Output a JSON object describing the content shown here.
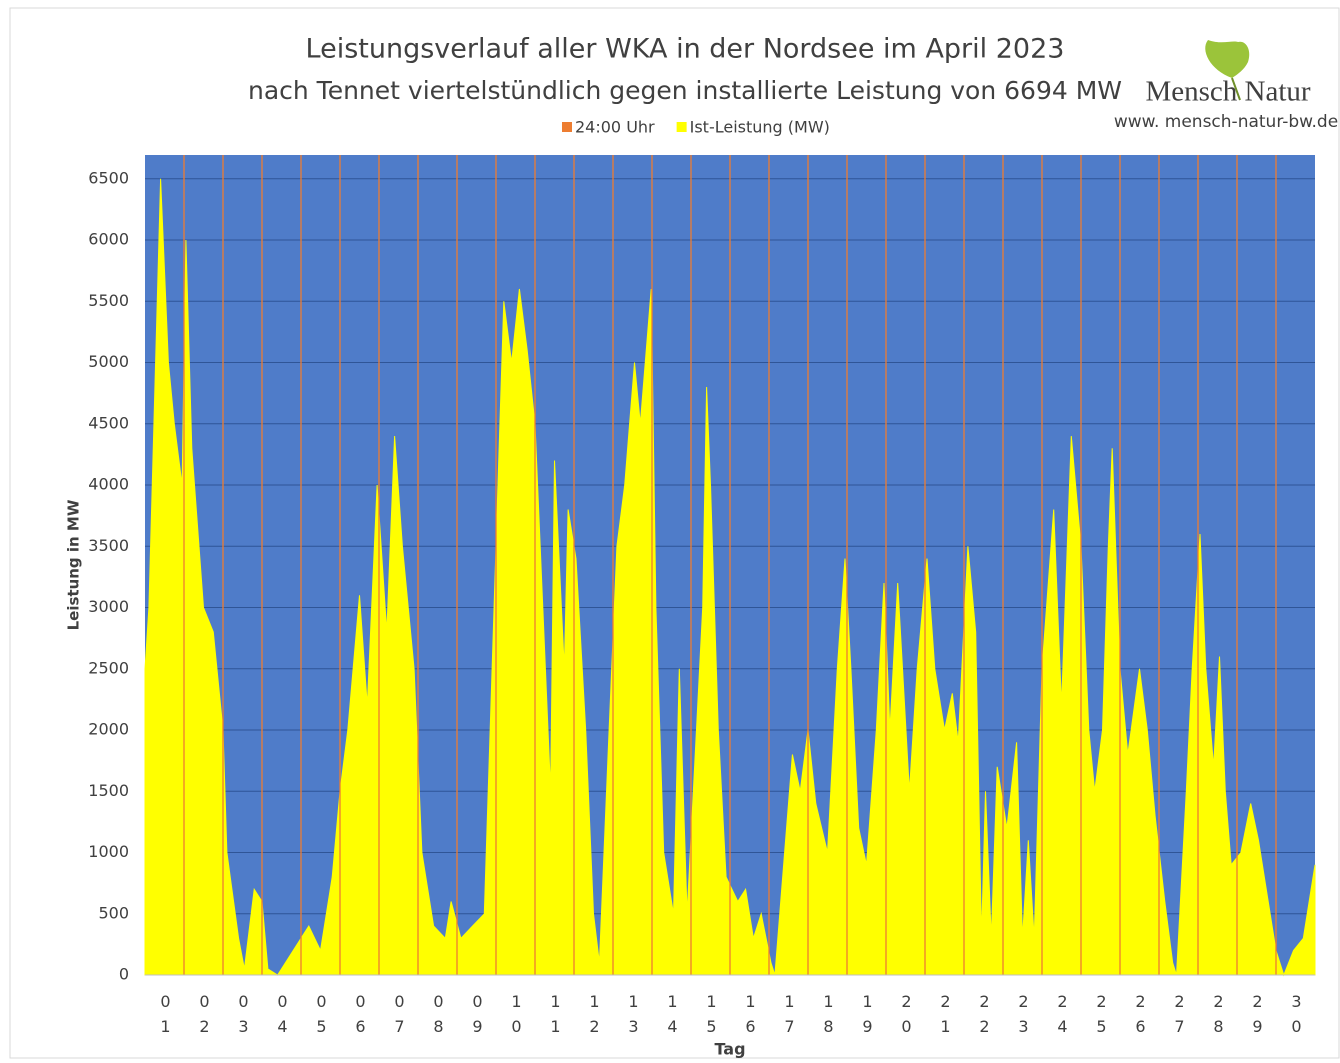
{
  "chart_data": {
    "type": "area",
    "title": "Leistungsverlauf aller WKA in der Nordsee im April 2023",
    "subtitle": "nach Tennet viertelstündlich gegen installierte Leistung von 6694 MW",
    "logo": {
      "name": "Mensch Natur",
      "url": "www. mensch-natur-bw.de"
    },
    "x_label": "Tag",
    "y_label": "Leistung in MW",
    "categories": [
      "01",
      "02",
      "03",
      "04",
      "05",
      "06",
      "07",
      "08",
      "09",
      "10",
      "11",
      "12",
      "13",
      "14",
      "15",
      "16",
      "17",
      "18",
      "19",
      "20",
      "21",
      "22",
      "23",
      "24",
      "25",
      "26",
      "27",
      "28",
      "29",
      "30"
    ],
    "xlim": [
      0,
      30
    ],
    "ylim": [
      0,
      6694
    ],
    "yticks": [
      0,
      500,
      1000,
      1500,
      2000,
      2500,
      3000,
      3500,
      4000,
      4500,
      5000,
      5500,
      6000,
      6500
    ],
    "grid": true,
    "background": "#4f7cc9",
    "series": [
      {
        "name": "24:00 Uhr",
        "color": "#ed7d31",
        "mark": "vline",
        "x": [
          1,
          2,
          3,
          4,
          5,
          6,
          7,
          8,
          9,
          10,
          11,
          12,
          13,
          14,
          15,
          16,
          17,
          18,
          19,
          20,
          21,
          22,
          23,
          24,
          25,
          26,
          27,
          28,
          29
        ],
        "values": [
          6694,
          6694,
          6694,
          6694,
          6694,
          6694,
          6694,
          6694,
          6694,
          6694,
          6694,
          6694,
          6694,
          6694,
          6694,
          6694,
          6694,
          6694,
          6694,
          6694,
          6694,
          6694,
          6694,
          6694,
          6694,
          6694,
          6694,
          6694,
          6694
        ]
      },
      {
        "name": "Ist-Leistung (MW)",
        "color": "#ffff00",
        "mark": "area",
        "x": [
          0,
          0.1,
          0.4,
          0.6,
          0.75,
          0.95,
          1.05,
          1.2,
          1.5,
          1.75,
          2.0,
          2.1,
          2.4,
          2.55,
          2.8,
          3.0,
          3.15,
          3.4,
          3.8,
          4.0,
          4.2,
          4.5,
          4.8,
          5.0,
          5.2,
          5.5,
          5.7,
          5.95,
          6.2,
          6.4,
          6.6,
          6.9,
          7.1,
          7.4,
          7.7,
          7.85,
          8.1,
          8.4,
          8.7,
          8.9,
          9.1,
          9.2,
          9.4,
          9.6,
          9.8,
          10.0,
          10.2,
          10.4,
          10.5,
          10.75,
          10.85,
          11.05,
          11.3,
          11.5,
          11.65,
          11.9,
          12.1,
          12.3,
          12.55,
          12.7,
          12.98,
          13.1,
          13.3,
          13.55,
          13.7,
          13.9,
          14.3,
          14.4,
          14.5,
          14.7,
          14.9,
          15.2,
          15.4,
          15.6,
          15.8,
          16.05,
          16.15,
          16.4,
          16.6,
          16.8,
          17.0,
          17.2,
          17.5,
          17.75,
          17.95,
          18.1,
          18.3,
          18.5,
          18.75,
          18.95,
          19.1,
          19.3,
          19.6,
          19.8,
          20.05,
          20.25,
          20.5,
          20.7,
          20.85,
          21.1,
          21.3,
          21.45,
          21.55,
          21.7,
          21.85,
          22.1,
          22.35,
          22.5,
          22.65,
          22.8,
          23.0,
          23.3,
          23.5,
          23.75,
          24.0,
          24.2,
          24.35,
          24.55,
          24.7,
          24.8,
          25.0,
          25.2,
          25.5,
          25.7,
          25.9,
          26.15,
          26.35,
          26.45,
          26.7,
          26.85,
          27.05,
          27.2,
          27.4,
          27.55,
          27.7,
          27.85,
          28.1,
          28.35,
          28.55,
          28.8,
          29.0,
          29.2,
          29.45,
          29.7,
          30.0
        ],
        "values": [
          2500,
          3000,
          6500,
          5000,
          4500,
          4000,
          6000,
          4300,
          3000,
          2800,
          2000,
          1000,
          300,
          50,
          700,
          600,
          50,
          0,
          200,
          300,
          400,
          200,
          800,
          1500,
          2000,
          3100,
          2200,
          4000,
          2800,
          4400,
          3500,
          2500,
          1000,
          400,
          300,
          600,
          300,
          400,
          500,
          2500,
          4500,
          5500,
          5000,
          5600,
          5100,
          4500,
          3000,
          1500,
          4200,
          2500,
          3800,
          3400,
          2000,
          500,
          100,
          2000,
          3500,
          4000,
          5000,
          4500,
          5600,
          3000,
          1000,
          500,
          2500,
          500,
          3000,
          4800,
          4000,
          2000,
          800,
          600,
          700,
          300,
          500,
          100,
          0,
          1000,
          1800,
          1500,
          2000,
          1400,
          1000,
          2500,
          3400,
          2500,
          1200,
          900,
          2000,
          3200,
          2000,
          3200,
          1500,
          2500,
          3400,
          2500,
          2000,
          2300,
          1900,
          3500,
          2800,
          300,
          1500,
          300,
          1700,
          1200,
          1900,
          300,
          1100,
          300,
          2500,
          3800,
          2200,
          4400,
          3500,
          2000,
          1500,
          2000,
          3500,
          4300,
          2500,
          1800,
          2500,
          2000,
          1300,
          600,
          100,
          0,
          1500,
          2500,
          3600,
          2500,
          1700,
          2600,
          1500,
          900,
          1000,
          1400,
          1100,
          600,
          200,
          0,
          200,
          300,
          900
        ]
      }
    ]
  }
}
